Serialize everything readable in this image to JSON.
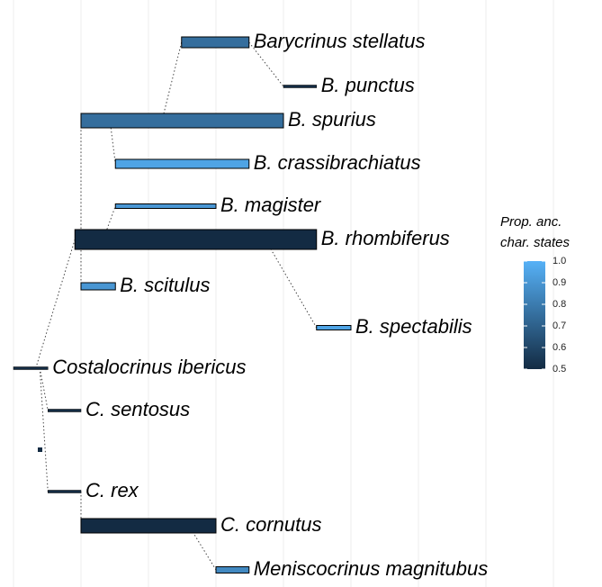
{
  "chart_data": {
    "type": "range-tree",
    "xlim": [
      0,
      8.6
    ],
    "xticks": [
      0,
      1,
      2,
      3,
      4,
      5,
      6,
      7,
      8
    ],
    "grid": true,
    "taxa": [
      {
        "name": "Barycrinus stellatus",
        "start": 2.49,
        "end": 3.49,
        "size": 12,
        "value": 0.75,
        "parent": 2,
        "branch": 2.2
      },
      {
        "name": "B. punctus",
        "start": 4,
        "end": 4.49,
        "size": 3,
        "value": 0.5,
        "parent": 0,
        "branch": 3.49
      },
      {
        "name": "B. spurius",
        "start": 1,
        "end": 4,
        "size": 16,
        "value": 0.75,
        "parent": 5,
        "branch": 1
      },
      {
        "name": "B. crassibrachiatus",
        "start": 1.51,
        "end": 3.49,
        "size": 10,
        "value": 0.95,
        "parent": 2,
        "branch": 1.43
      },
      {
        "name": "B. magister",
        "start": 1.51,
        "end": 3,
        "size": 5,
        "value": 0.9,
        "parent": 5,
        "branch": 1.33
      },
      {
        "name": "B. rhombiferus",
        "start": 0.91,
        "end": 4.49,
        "size": 22,
        "value": 0.5,
        "parent": 8,
        "branch": 0.33
      },
      {
        "name": "B. scitulus",
        "start": 1,
        "end": 1.51,
        "size": 8,
        "value": 0.9,
        "parent": 5,
        "branch": 1
      },
      {
        "name": "B. spectabilis",
        "start": 4.49,
        "end": 5,
        "size": 5,
        "value": 0.95,
        "parent": 5,
        "branch": 3.73
      },
      {
        "name": "Costalocrinus ibericus",
        "start": 0,
        "end": 0.51,
        "size": 3,
        "value": 0.5,
        "parent": null,
        "branch": null
      },
      {
        "name": "C. sentosus",
        "start": 0.51,
        "end": 1,
        "size": 3,
        "value": 0.5,
        "parent": 8,
        "branch": 0.39
      },
      {
        "name": "C. rex",
        "start": 0.51,
        "end": 1,
        "size": 3,
        "value": 0.5,
        "parent": 8,
        "branch": 0.39
      },
      {
        "name": "C. cornutus",
        "start": 1,
        "end": 3,
        "size": 16,
        "value": 0.5,
        "parent": 10,
        "branch": 1
      },
      {
        "name": "Meniscocrinus magnitubus",
        "start": 3,
        "end": 3.49,
        "size": 7,
        "value": 0.85,
        "parent": 11,
        "branch": 2.6
      }
    ],
    "colorbar": {
      "title": [
        "Prop. anc.",
        "char. states"
      ],
      "lim": [
        0.5,
        1
      ],
      "low": "#132b43",
      "high": "#56b1f7",
      "ticks": [
        {
          "value": 1,
          "label": "1.0"
        },
        0.9,
        0.8,
        0.7,
        0.6,
        0.5
      ]
    }
  }
}
